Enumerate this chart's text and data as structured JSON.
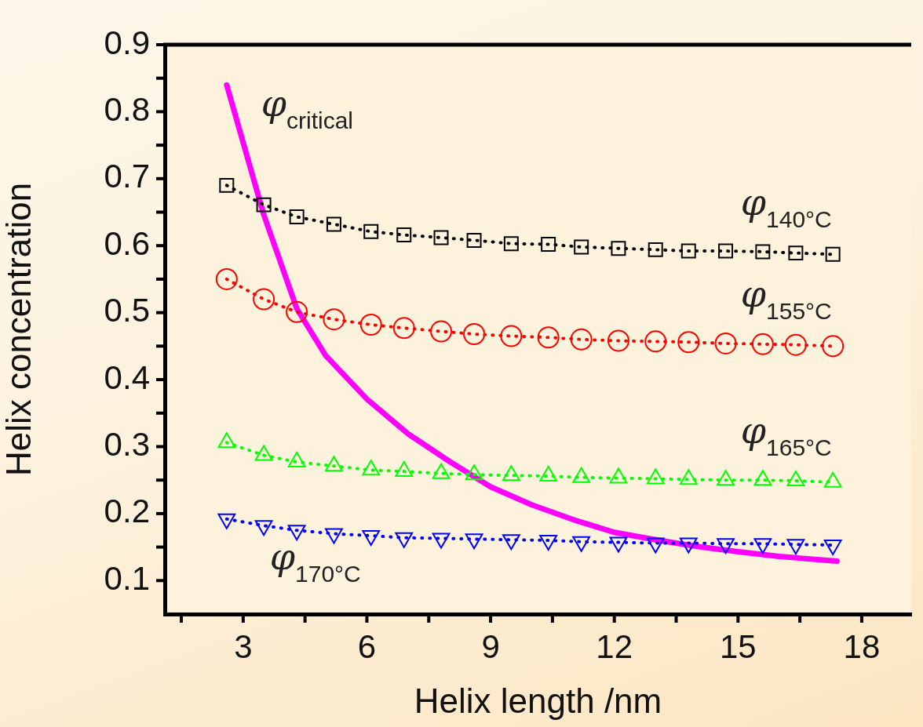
{
  "chart_data": {
    "type": "line",
    "xlabel": "Helix length /nm",
    "ylabel": "Helix concentration",
    "xlim": [
      1.1,
      19.2
    ],
    "ylim": [
      0.05,
      0.9
    ],
    "xticks": [
      {
        "value": 1.5,
        "label": null
      },
      3,
      {
        "value": 4.5,
        "label": null
      },
      6,
      {
        "value": 7.5,
        "label": null
      },
      9,
      {
        "value": 10.5,
        "label": null
      },
      12,
      {
        "value": 13.5,
        "label": null
      },
      15,
      {
        "value": 16.5,
        "label": null
      },
      18
    ],
    "yticks": [
      0.1,
      {
        "value": 0.15,
        "label": null
      },
      0.2,
      {
        "value": 0.25,
        "label": null
      },
      0.3,
      {
        "value": 0.35,
        "label": null
      },
      0.4,
      {
        "value": 0.45,
        "label": null
      },
      0.5,
      {
        "value": 0.55,
        "label": null
      },
      0.6,
      {
        "value": 0.65,
        "label": null
      },
      0.7,
      {
        "value": 0.75,
        "label": null
      },
      0.8,
      {
        "value": 0.85,
        "label": null
      },
      0.9
    ],
    "grid": false,
    "legend": false,
    "x": [
      2.6,
      3.5,
      4.3,
      5.2,
      6.1,
      6.9,
      7.8,
      8.6,
      9.5,
      10.4,
      11.2,
      12.1,
      13.0,
      13.8,
      14.7,
      15.6,
      16.4,
      17.3
    ],
    "series": [
      {
        "name": "φ$_{140°C}$",
        "color": "#000000",
        "marker": "square",
        "line_style": "dotted",
        "values": [
          0.69,
          0.661,
          0.643,
          0.632,
          0.621,
          0.616,
          0.612,
          0.608,
          0.603,
          0.602,
          0.598,
          0.596,
          0.594,
          0.592,
          0.592,
          0.591,
          0.589,
          0.587
        ]
      },
      {
        "name": "φ$_{155°C}$",
        "color": "#ff0000",
        "marker": "circle",
        "line_style": "dotted",
        "values": [
          0.55,
          0.52,
          0.501,
          0.49,
          0.482,
          0.477,
          0.472,
          0.468,
          0.465,
          0.463,
          0.46,
          0.458,
          0.457,
          0.456,
          0.454,
          0.453,
          0.452,
          0.45
        ]
      },
      {
        "name": "φ$_{165°C}$",
        "color": "#00ff00",
        "marker": "triangle",
        "line_style": "dotted",
        "values": [
          0.306,
          0.287,
          0.277,
          0.271,
          0.265,
          0.263,
          0.26,
          0.258,
          0.257,
          0.256,
          0.254,
          0.253,
          0.252,
          0.251,
          0.25,
          0.25,
          0.249,
          0.247
        ]
      },
      {
        "name": "φ$_{170°C}$",
        "color": "#0000ff",
        "marker": "triangle-down",
        "line_style": "dotted",
        "values": [
          0.192,
          0.182,
          0.175,
          0.17,
          0.167,
          0.164,
          0.163,
          0.162,
          0.161,
          0.16,
          0.158,
          0.157,
          0.156,
          0.156,
          0.155,
          0.155,
          0.154,
          0.153
        ]
      },
      {
        "name": "φ$_{critical}$",
        "color": "#ff00ff",
        "marker": "none",
        "line_style": "solid",
        "x": [
          2.6,
          3.5,
          4.3,
          5,
          6,
          7,
          8,
          9,
          10,
          11,
          12,
          13,
          14,
          15,
          16,
          17.4
        ],
        "values": [
          0.84,
          0.646,
          0.506,
          0.436,
          0.371,
          0.319,
          0.278,
          0.24,
          0.213,
          0.191,
          0.172,
          0.161,
          0.151,
          0.143,
          0.136,
          0.129
        ]
      }
    ]
  }
}
